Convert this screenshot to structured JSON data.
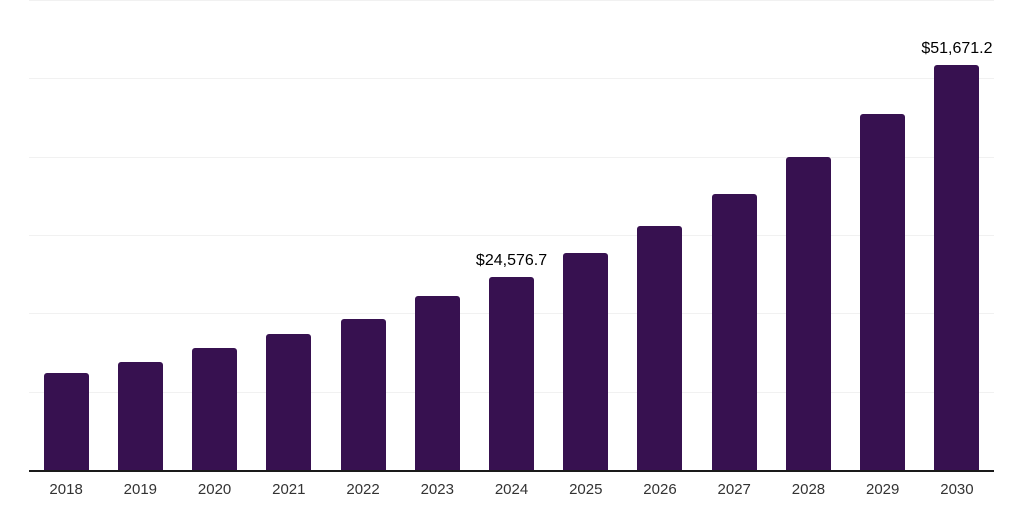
{
  "chart_data": {
    "type": "bar",
    "title": "",
    "xlabel": "",
    "ylabel": "",
    "categories": [
      "2018",
      "2019",
      "2020",
      "2021",
      "2022",
      "2023",
      "2024",
      "2025",
      "2026",
      "2027",
      "2028",
      "2029",
      "2030"
    ],
    "values": [
      12400,
      13800,
      15600,
      17380,
      19230,
      22170,
      24576.7,
      27730,
      31180,
      35270,
      40000,
      45430,
      51671.2
    ],
    "data_labels": [
      {
        "category": "2024",
        "text": "$24,576.7"
      },
      {
        "category": "2030",
        "text": "$51,671.2"
      }
    ],
    "ylim": [
      0,
      60000
    ],
    "gridline_interval": 10000,
    "grid": true,
    "legend": false,
    "colors": {
      "bar": "#371150",
      "gridline": "#f1f1f1",
      "axis_line": "#1a1a1a",
      "value_label": "#000000",
      "tick_label": "#333333"
    }
  }
}
